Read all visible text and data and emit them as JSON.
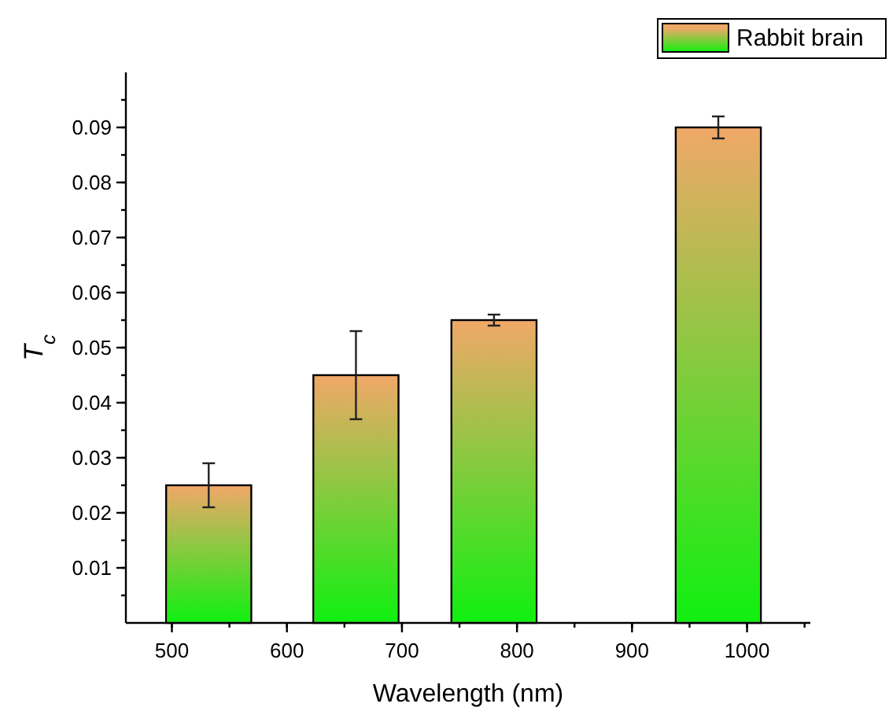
{
  "chart_data": {
    "type": "bar",
    "xlabel": "Wavelength (nm)",
    "ylabel": "T$_{c}$",
    "x": [
      532,
      660,
      780,
      975
    ],
    "series": [
      {
        "name": "Rabbit brain",
        "color": "#f0a868",
        "values": [
          0.025,
          0.045,
          0.055,
          0.09
        ],
        "errors": [
          0.004,
          0.008,
          0.001,
          0.002
        ]
      }
    ],
    "xlim": [
      460,
      1055
    ],
    "xticks": [
      500,
      600,
      700,
      800,
      900,
      1000
    ],
    "ylim": [
      0,
      0.1
    ],
    "yticks": [
      0.01,
      0.02,
      0.03,
      0.04,
      0.05,
      0.06,
      0.07,
      0.08,
      0.09
    ],
    "grid": false,
    "legend": "top right"
  }
}
